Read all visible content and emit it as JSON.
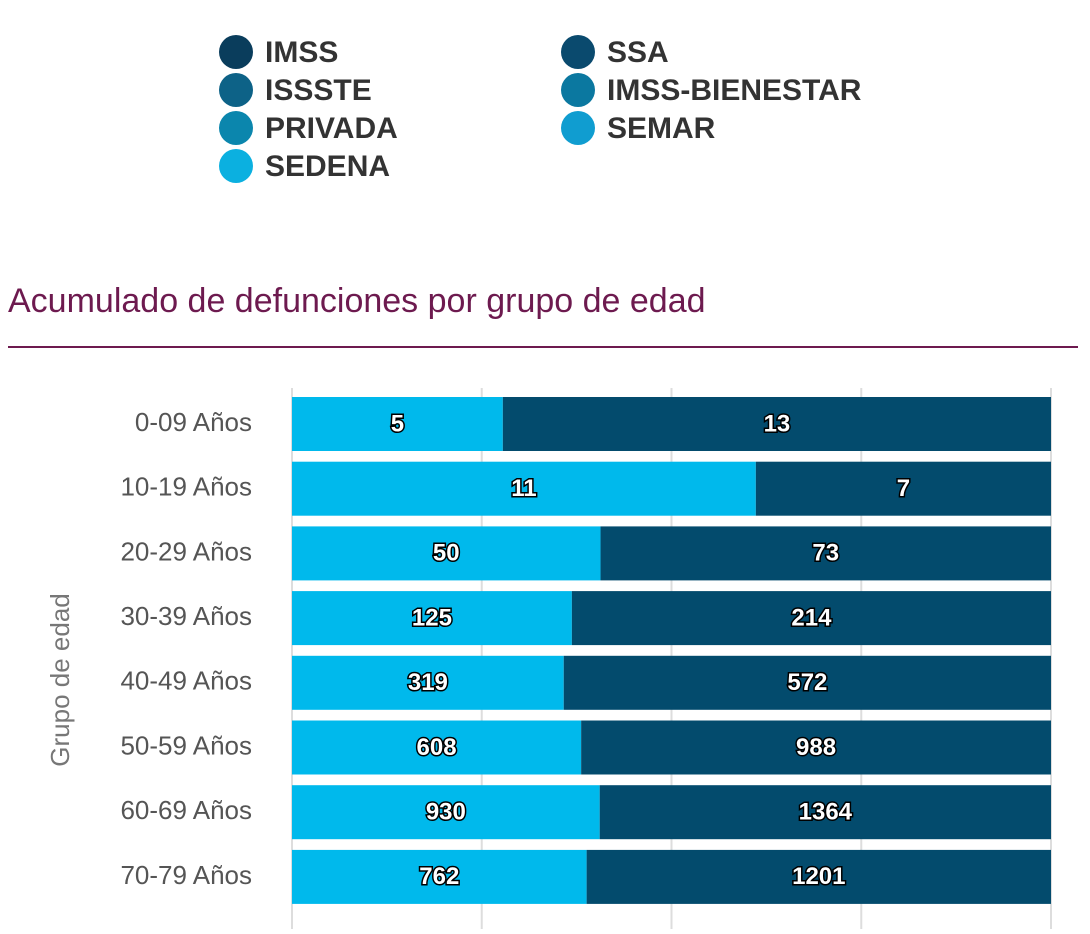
{
  "legend": {
    "items": [
      {
        "label": "IMSS",
        "color": "#0a3d5c"
      },
      {
        "label": "ISSSTE",
        "color": "#0d6287"
      },
      {
        "label": "PRIVADA",
        "color": "#0b86ad"
      },
      {
        "label": "SEDENA",
        "color": "#0bb0e0"
      },
      {
        "label": "SSA",
        "color": "#0a4a6e"
      },
      {
        "label": "IMSS-BIENESTAR",
        "color": "#0b78a0"
      },
      {
        "label": "SEMAR",
        "color": "#109dd0"
      }
    ]
  },
  "chart_data": {
    "type": "bar",
    "orientation": "horizontal",
    "stacking": "percent",
    "title": "Acumulado de defunciones por grupo de edad",
    "y_label": "Grupo de edad",
    "categories": [
      "0-09 Años",
      "10-19 Años",
      "20-29 Años",
      "30-39 Años",
      "40-49 Años",
      "50-59 Años",
      "60-69 Años",
      "70-79 Años"
    ],
    "series": [
      {
        "color": "#00b9ec",
        "values": [
          5,
          11,
          50,
          125,
          319,
          608,
          930,
          762
        ]
      },
      {
        "color": "#034b6d",
        "values": [
          13,
          7,
          73,
          214,
          572,
          988,
          1364,
          1201
        ]
      }
    ],
    "xlim": [
      0,
      100
    ],
    "xticks": [
      0,
      25,
      50,
      75,
      100
    ],
    "grid": true
  }
}
